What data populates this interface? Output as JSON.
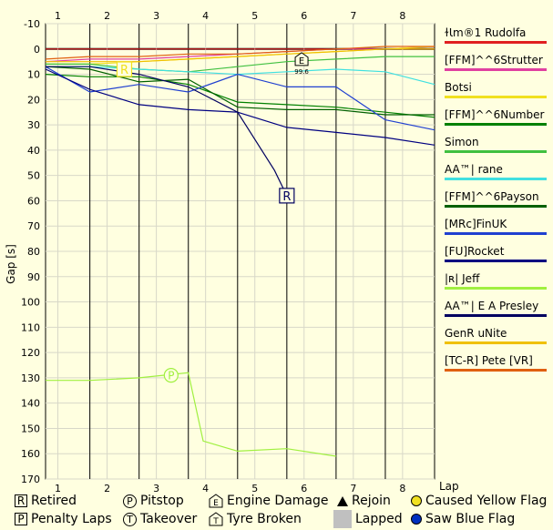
{
  "chart_data": {
    "type": "line",
    "ylabel": "Gap [s]",
    "xlabel": "Lap",
    "xlim": [
      0.75,
      8.65
    ],
    "ylim": [
      170,
      -10
    ],
    "x_ticks": [
      1,
      2,
      3,
      4,
      5,
      6,
      7,
      8
    ],
    "y_ticks": [
      -10,
      0,
      10,
      20,
      30,
      40,
      50,
      60,
      70,
      80,
      90,
      100,
      110,
      120,
      130,
      140,
      150,
      160,
      170
    ],
    "lap_boundaries": [
      1.65,
      2.65,
      3.65,
      4.65,
      5.65,
      6.65,
      7.65
    ],
    "grid": true,
    "legend_position": "right",
    "series": [
      {
        "name": "ɫꙆm®1 Rudolfa",
        "color": "#e02020",
        "x": [
          0.75,
          1.65,
          2.65,
          3.65,
          4.65,
          5.65,
          6.65,
          7.65,
          8.65
        ],
        "y": [
          0,
          0,
          0,
          0,
          0,
          0,
          0,
          0,
          0
        ]
      },
      {
        "name": "[FFM]^^6Strutter",
        "color": "#e040a0",
        "x": [
          0.75,
          1.65,
          2.65,
          3.65,
          4.65,
          5.65,
          6.65,
          7.65,
          8.65
        ],
        "y": [
          5,
          4,
          4,
          3,
          2,
          1,
          0,
          0,
          -1
        ]
      },
      {
        "name": "Botsi",
        "color": "#f0e020",
        "x": [
          0.75,
          1.65,
          2.65,
          3.65,
          4.65,
          5.65,
          6.65,
          7.65,
          8.65
        ],
        "y": [
          6,
          6,
          5,
          4,
          3,
          2,
          1,
          0,
          -1
        ]
      },
      {
        "name": "[FFM]^^6Number",
        "color": "#008000",
        "x": [
          0.75,
          1.65,
          2.65,
          3.65,
          4.65,
          5.65,
          6.65,
          7.65,
          8.65
        ],
        "y": [
          10,
          11,
          11,
          14,
          21,
          22,
          23,
          25,
          27
        ]
      },
      {
        "name": "Simon",
        "color": "#40c040",
        "x": [
          0.75,
          1.65,
          2.65,
          3.65,
          4.65,
          5.65,
          6.65,
          7.65,
          8.65
        ],
        "y": [
          6,
          6,
          8,
          9,
          7,
          5,
          4,
          3,
          3
        ]
      },
      {
        "name": "AA™| rane",
        "color": "#40e0e0",
        "x": [
          0.75,
          1.65,
          2.65,
          3.65,
          4.65,
          5.65,
          6.65,
          7.65,
          8.65
        ],
        "y": [
          7,
          7,
          8,
          9,
          10,
          9,
          8,
          9,
          14
        ]
      },
      {
        "name": "[FFM]^^6Payson",
        "color": "#006000",
        "x": [
          0.75,
          1.65,
          2.65,
          3.65,
          4.65,
          5.65,
          6.65,
          7.65,
          8.65
        ],
        "y": [
          7,
          8,
          13,
          12,
          23,
          24,
          24,
          26,
          26
        ]
      },
      {
        "name": "[MRc]FinUK",
        "color": "#2040d0",
        "x": [
          0.75,
          1.65,
          2.65,
          3.65,
          4.65,
          5.65,
          6.65,
          7.65,
          8.65
        ],
        "y": [
          7,
          17,
          14,
          17,
          10,
          15,
          15,
          28,
          32
        ]
      },
      {
        "name": "[FU]Rocket",
        "color": "#000080",
        "x": [
          0.75,
          1.65,
          2.65,
          3.65,
          4.65,
          5.65,
          6.65,
          7.65,
          8.65
        ],
        "y": [
          8,
          16,
          22,
          24,
          25,
          31,
          33,
          35,
          38
        ]
      },
      {
        "name": "|ʀ| Jeff",
        "color": "#a0f040",
        "x": [
          0.75,
          1.65,
          2.65,
          3.65,
          3.95,
          4.65,
          5.65,
          6.65
        ],
        "y": [
          131,
          131,
          130,
          128,
          155,
          159,
          158,
          161
        ]
      },
      {
        "name": "AA™| E A Presley",
        "color": "#000060",
        "x": [
          0.75,
          1.65,
          2.65,
          3.65,
          4.65,
          5.4,
          5.65
        ],
        "y": [
          7,
          7,
          10,
          15,
          25,
          48,
          58
        ]
      },
      {
        "name": "GenR uNite",
        "color": "#f0c000",
        "x": [
          0.75,
          1.65,
          2.65,
          3.65,
          4.65,
          5.65,
          6.65,
          7.65,
          8.65
        ],
        "y": [
          5,
          5,
          5,
          4,
          3,
          2,
          1,
          0,
          0
        ]
      },
      {
        "name": "[TC-R] Pete [VR]",
        "color": "#e06010",
        "x": [
          0.75,
          1.65,
          2.65,
          3.65,
          4.65,
          5.65,
          6.65,
          7.65,
          8.65
        ],
        "y": [
          4,
          3,
          3,
          2,
          2,
          1,
          0,
          -1,
          -1
        ]
      }
    ],
    "annotations": [
      {
        "type": "Retired",
        "symbol": "R",
        "x": 2.35,
        "y": 8,
        "color": "#f0e020"
      },
      {
        "type": "Retired",
        "symbol": "R",
        "x": 5.65,
        "y": 58,
        "color": "#000060"
      },
      {
        "type": "Pitstop",
        "symbol": "P",
        "x": 3.3,
        "y": 129,
        "color": "#a0f040"
      },
      {
        "type": "Engine Damage",
        "symbol": "E",
        "x": 5.95,
        "y": 4,
        "color": "#000000",
        "label": "99.6"
      }
    ]
  },
  "key": [
    {
      "symbol": "R",
      "label": "Retired"
    },
    {
      "symbol": "P",
      "label": "Pitstop"
    },
    {
      "symbol": "E",
      "label": "Engine Damage"
    },
    {
      "symbol": "triangle",
      "label": "Rejoin"
    },
    {
      "symbol": "yellow-dot",
      "label": "Caused Yellow Flag",
      "color": "#f0e020"
    },
    {
      "symbol": "P",
      "label": "Penalty Laps"
    },
    {
      "symbol": "T",
      "label": "Takeover"
    },
    {
      "symbol": "T",
      "label": "Tyre Broken"
    },
    {
      "symbol": "gray",
      "label": "Lapped",
      "color": "#c0c0c0"
    },
    {
      "symbol": "blue-dot",
      "label": "Saw Blue Flag",
      "color": "#0030c0"
    }
  ]
}
